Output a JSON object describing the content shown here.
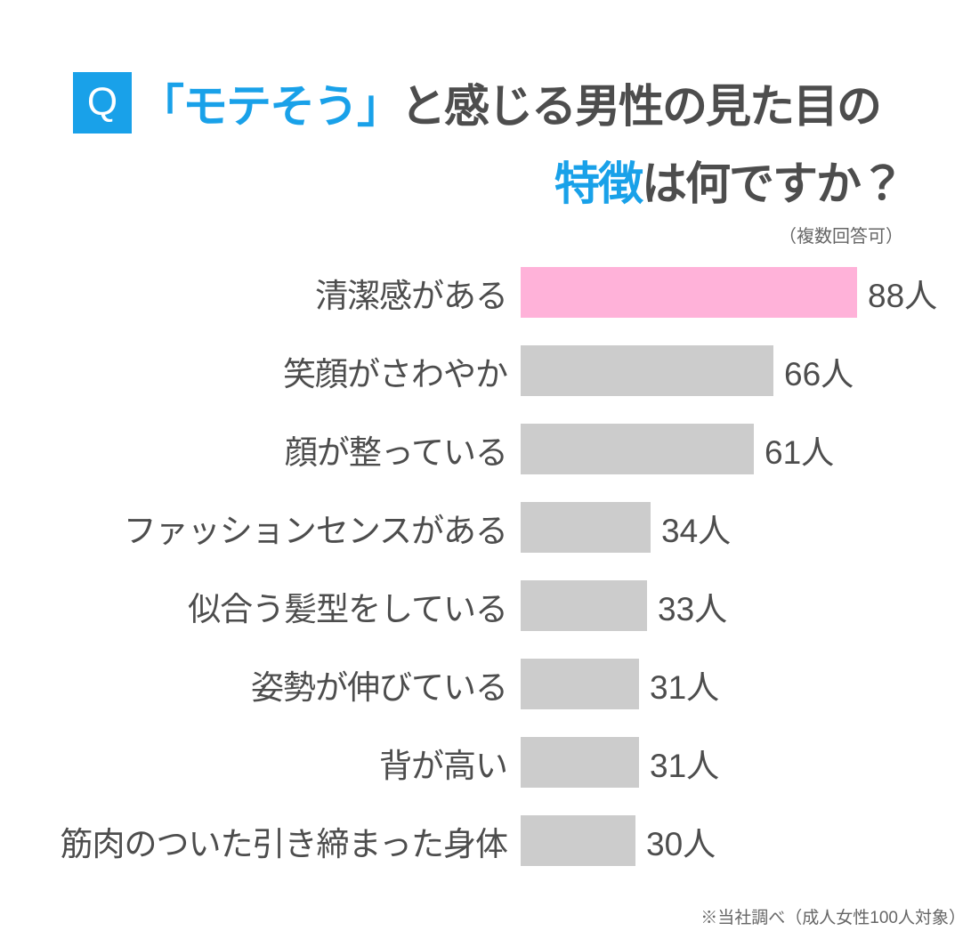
{
  "header": {
    "q_badge": "Q",
    "title_line1_accent": "「モテそう」",
    "title_line1_rest": "と感じる男性の見た目の",
    "title_line2_accent": "特徴",
    "title_line2_rest": "は何ですか？",
    "note": "（複数回答可）"
  },
  "footer": {
    "source_note": "※当社調べ（成人女性100人対象）"
  },
  "colors": {
    "accent_blue": "#19A1E9",
    "bar_pink": "#FFB2D9",
    "bar_gray": "#CCCCCC",
    "text_dark": "#4D4D4D",
    "text_muted": "#666666"
  },
  "chart_data": {
    "type": "bar",
    "orientation": "horizontal",
    "title": "「モテそう」と感じる男性の見た目の特徴は何ですか？",
    "subtitle": "（複数回答可）",
    "unit": "人",
    "xlim": [
      0,
      88
    ],
    "grid": false,
    "legend": false,
    "categories": [
      "清潔感がある",
      "笑顔がさわやか",
      "顔が整っている",
      "ファッションセンスがある",
      "似合う髪型をしている",
      "姿勢が伸びている",
      "背が高い",
      "筋肉のついた引き締まった身体"
    ],
    "values": [
      88,
      66,
      61,
      34,
      33,
      31,
      31,
      30
    ],
    "value_labels": [
      "88人",
      "66人",
      "61人",
      "34人",
      "33人",
      "31人",
      "31人",
      "30人"
    ],
    "bar_colors": [
      "#FFB2D9",
      "#CCCCCC",
      "#CCCCCC",
      "#CCCCCC",
      "#CCCCCC",
      "#CCCCCC",
      "#CCCCCC",
      "#CCCCCC"
    ],
    "highlight_index": 0,
    "source": "※当社調べ（成人女性100人対象）"
  }
}
